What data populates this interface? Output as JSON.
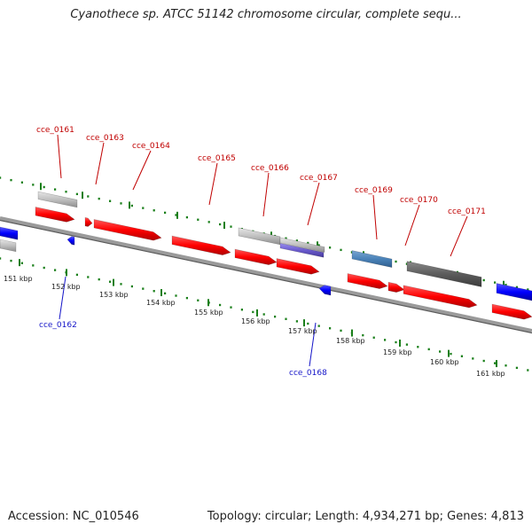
{
  "header": {
    "title": "Cyanothece sp. ATCC 51142 chromosome circular, complete sequ..."
  },
  "footer": {
    "accession": "Accession: NC_010546",
    "summary": "Topology: circular; Length: 4,934,271 bp; Genes: 4,813"
  },
  "ruler": {
    "ticks": [
      "151 kbp",
      "152 kbp",
      "153 kbp",
      "154 kbp",
      "155 kbp",
      "156 kbp",
      "157 kbp",
      "158 kbp",
      "159 kbp",
      "160 kbp",
      "161 kbp"
    ]
  },
  "genes": {
    "top": [
      "cce_0161",
      "cce_0163",
      "cce_0164",
      "cce_0165",
      "cce_0166",
      "cce_0167",
      "cce_0169",
      "cce_0170",
      "cce_0171"
    ],
    "bottom": [
      "cce_0162",
      "cce_0168"
    ]
  },
  "colors": {
    "forward": "#ff0000",
    "reverse": "#0000ff",
    "label_forward": "#c00000",
    "label_reverse": "#1414c8",
    "track_dots": "#1a7f1a",
    "backbone": "#888888"
  }
}
